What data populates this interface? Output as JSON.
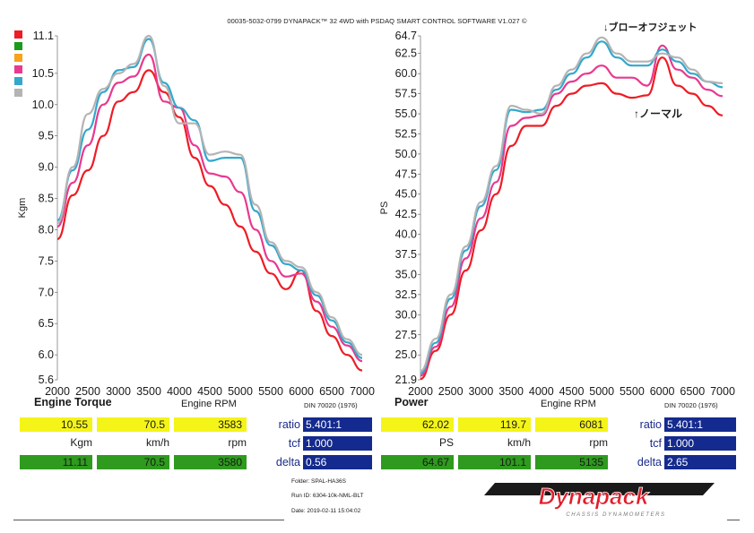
{
  "header": "00035-5032-0799 DYNAPACK™ 32 4WD with PSDAQ SMART CONTROL SOFTWARE V1.027 ©",
  "colors": {
    "red": "#ee1c25",
    "green": "#1b9a1b",
    "orange": "#f7a31c",
    "pink": "#e8398f",
    "cyan": "#33a8cc",
    "gray": "#b4b4b4"
  },
  "annotations": {
    "blow_off": "↓ブローオフジェット",
    "normal": "↑ノーマル"
  },
  "chart_data": [
    {
      "type": "line",
      "ylabel": "Kgm",
      "xlabel": "Engine RPM",
      "section_title": "Engine Torque",
      "standard": "DIN 70020 (1976)",
      "xlim": [
        2000,
        7000
      ],
      "ylim": [
        5.6,
        11.1
      ],
      "xticks": [
        "2000",
        "2500",
        "3000",
        "3500",
        "4000",
        "4500",
        "5000",
        "5500",
        "6000",
        "6500",
        "7000"
      ],
      "yticks": [
        "5.6",
        "6.0",
        "6.5",
        "7.0",
        "7.5",
        "8.0",
        "8.5",
        "9.0",
        "9.5",
        "10.0",
        "10.5",
        "11.1"
      ],
      "x": [
        2000,
        2250,
        2500,
        2750,
        3000,
        3250,
        3500,
        3750,
        4000,
        4250,
        4500,
        4750,
        5000,
        5250,
        5500,
        5750,
        6000,
        6250,
        6500,
        6750,
        7000
      ],
      "series": [
        {
          "color": "#ee1c25",
          "values": [
            7.85,
            8.55,
            8.95,
            9.5,
            10.05,
            10.2,
            10.55,
            10.2,
            9.8,
            9.15,
            8.7,
            8.4,
            8.05,
            7.65,
            7.3,
            7.05,
            7.35,
            6.7,
            6.3,
            6.0,
            5.75
          ]
        },
        {
          "color": "#e8398f",
          "values": [
            8.05,
            8.75,
            9.35,
            10.0,
            10.35,
            10.45,
            10.8,
            10.05,
            9.95,
            9.35,
            8.9,
            8.85,
            8.6,
            8.0,
            7.5,
            7.25,
            7.3,
            6.85,
            6.45,
            6.15,
            5.9
          ]
        },
        {
          "color": "#33a8cc",
          "values": [
            8.15,
            8.95,
            9.6,
            10.2,
            10.55,
            10.6,
            11.05,
            10.35,
            9.95,
            9.75,
            9.1,
            9.15,
            9.15,
            8.3,
            7.75,
            7.45,
            7.35,
            6.95,
            6.55,
            6.2,
            5.95
          ]
        },
        {
          "color": "#b4b4b4",
          "values": [
            8.1,
            9.0,
            9.85,
            10.25,
            10.5,
            10.65,
            11.1,
            10.3,
            9.7,
            9.7,
            9.2,
            9.25,
            9.2,
            8.4,
            7.8,
            7.5,
            7.4,
            7.0,
            6.6,
            6.25,
            6.0
          ]
        }
      ],
      "readouts": {
        "row1": [
          "10.55",
          "70.5",
          "3583"
        ],
        "units": [
          "Kgm",
          "km/h",
          "rpm"
        ],
        "row2": [
          "11.11",
          "70.5",
          "3580"
        ],
        "ratio": "5.401:1",
        "tcf": "1.000",
        "delta": "0.56"
      }
    },
    {
      "type": "line",
      "ylabel": "PS",
      "xlabel": "Engine RPM",
      "section_title": "Power",
      "standard": "DIN 70020 (1976)",
      "xlim": [
        2000,
        7000
      ],
      "ylim": [
        21.9,
        64.7
      ],
      "xticks": [
        "2000",
        "2500",
        "3000",
        "3500",
        "4000",
        "4500",
        "5000",
        "5500",
        "6000",
        "6500",
        "7000"
      ],
      "yticks": [
        "21.9",
        "25.0",
        "27.5",
        "30.0",
        "32.5",
        "35.0",
        "37.5",
        "40.0",
        "42.5",
        "45.0",
        "47.5",
        "50.0",
        "52.5",
        "55.0",
        "57.5",
        "60.0",
        "62.5",
        "64.7"
      ],
      "x": [
        2000,
        2250,
        2500,
        2750,
        3000,
        3250,
        3500,
        3750,
        4000,
        4250,
        4500,
        4750,
        5000,
        5250,
        5500,
        5750,
        6000,
        6250,
        6500,
        6750,
        7000
      ],
      "series": [
        {
          "color": "#ee1c25",
          "values": [
            22.0,
            25.5,
            30.0,
            35.5,
            40.5,
            45.0,
            51.0,
            53.5,
            53.5,
            56.0,
            57.5,
            58.5,
            58.8,
            57.5,
            57.0,
            57.3,
            62.0,
            58.5,
            57.5,
            56.0,
            54.8
          ]
        },
        {
          "color": "#e8398f",
          "values": [
            22.4,
            26.0,
            31.0,
            37.0,
            42.0,
            46.5,
            53.5,
            54.5,
            54.8,
            57.5,
            59.0,
            60.0,
            61.0,
            59.5,
            59.5,
            58.5,
            63.5,
            60.5,
            59.5,
            58.0,
            57.2
          ]
        },
        {
          "color": "#33a8cc",
          "values": [
            22.7,
            26.5,
            32.0,
            38.0,
            43.5,
            48.0,
            55.5,
            55.2,
            55.5,
            58.0,
            60.0,
            62.0,
            64.0,
            62.0,
            61.0,
            61.0,
            63.0,
            61.5,
            60.0,
            59.0,
            58.3
          ]
        },
        {
          "color": "#b4b4b4",
          "values": [
            23.0,
            27.0,
            32.5,
            38.5,
            44.0,
            48.5,
            56.0,
            55.5,
            55.0,
            58.5,
            60.5,
            62.5,
            64.5,
            62.5,
            61.5,
            61.5,
            62.5,
            62.0,
            60.5,
            59.0,
            58.8
          ]
        }
      ],
      "readouts": {
        "row1": [
          "62.02",
          "119.7",
          "6081"
        ],
        "units": [
          "PS",
          "km/h",
          "rpm"
        ],
        "row2": [
          "64.67",
          "101.1",
          "5135"
        ],
        "ratio": "5.401:1",
        "tcf": "1.000",
        "delta": "2.65"
      }
    }
  ],
  "labels": {
    "ratio": "ratio",
    "tcf": "tcf",
    "delta": "delta"
  },
  "meta": {
    "folder": "Folder:  SPAL-HA36S",
    "run_id": "Run ID:  6304-10k-NML-BLT",
    "date": "Date:  2019-02-11 15:04:02"
  },
  "logo": {
    "name": "Dynapack",
    "tagline": "CHASSIS DYNAMOMETERS"
  }
}
